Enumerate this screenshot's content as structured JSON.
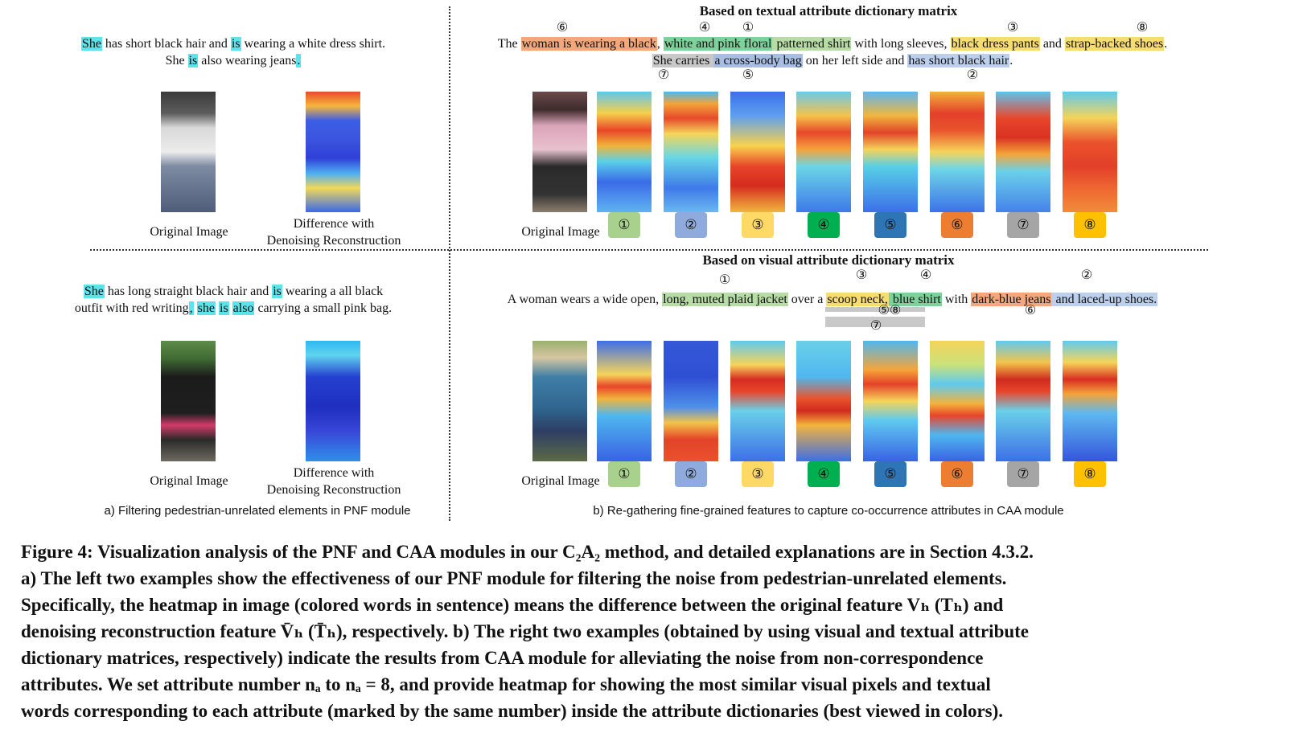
{
  "top_left": {
    "sentence": [
      [
        {
          "t": "She",
          "c": "cy"
        },
        {
          "t": " has short black hair and "
        },
        {
          "t": "is",
          "c": "cy"
        },
        {
          "t": " wearing a white dress shirt."
        }
      ],
      [
        {
          "t": "She "
        },
        {
          "t": "is",
          "c": "cy"
        },
        {
          "t": " also wearing jeans"
        },
        {
          "t": ".",
          "c": "cy"
        }
      ]
    ],
    "original_label": "Original Image",
    "diff_label_1": "Difference with",
    "diff_label_2": "Denoising Reconstruction"
  },
  "bottom_left": {
    "sentence": [
      [
        {
          "t": "She",
          "c": "cy"
        },
        {
          "t": " has long straight black hair and "
        },
        {
          "t": "is",
          "c": "cy"
        },
        {
          "t": " wearing a all black"
        }
      ],
      [
        {
          "t": "outfit with red writing"
        },
        {
          "t": ",",
          "c": "cy"
        },
        {
          "t": " "
        },
        {
          "t": "she",
          "c": "cy"
        },
        {
          "t": " "
        },
        {
          "t": "is",
          "c": "cy"
        },
        {
          "t": " "
        },
        {
          "t": "also",
          "c": "cy"
        },
        {
          "t": " carrying a small pink bag."
        }
      ]
    ],
    "original_label": "Original Image",
    "diff_label_1": "Difference with",
    "diff_label_2": "Denoising Reconstruction"
  },
  "top_right": {
    "header": "Based on textual attribute dictionary matrix",
    "sentence": [
      [
        {
          "t": "The "
        },
        {
          "t": "woman is wearing a black",
          "c": "or"
        },
        {
          "t": ", "
        },
        {
          "t": "white and pink floral",
          "c": "gr"
        },
        {
          "t": " patterned shirt",
          "c": "sg"
        },
        {
          "t": " with long sleeves, "
        },
        {
          "t": "black dress pants",
          "c": "ye"
        },
        {
          "t": " and "
        },
        {
          "t": "strap-backed shoes",
          "c": "ye"
        },
        {
          "t": "."
        }
      ],
      [
        {
          "t": "She carries ",
          "c": "gy"
        },
        {
          "t": "a cross-body bag",
          "c": "bl"
        },
        {
          "t": " on her left side and "
        },
        {
          "t": "has short black hair",
          "c": "lb"
        },
        {
          "t": "."
        }
      ]
    ],
    "marks": [
      "⑥",
      "④",
      "①",
      "③",
      "⑧",
      "⑦",
      "⑤",
      "②"
    ],
    "original_label": "Original Image"
  },
  "bottom_right": {
    "header": "Based on visual attribute dictionary matrix",
    "sentence": [
      [
        {
          "t": "A woman wears a wide open, "
        },
        {
          "t": "long, muted plaid jacket",
          "c": "sg"
        },
        {
          "t": " over a "
        },
        {
          "t": "scoop neck,",
          "c": "ye"
        },
        {
          "t": " blue shirt",
          "c": "gr"
        },
        {
          "t": " with "
        },
        {
          "t": "dark-blue jeans",
          "c": "or"
        },
        {
          "t": " and laced-up shoes.",
          "c": "lb"
        }
      ]
    ],
    "marks": [
      "①",
      "③",
      "④",
      "②",
      "⑤⑧",
      "⑥",
      "⑦"
    ],
    "original_label": "Original Image"
  },
  "badges": [
    {
      "label": "①",
      "color": "#a9d18e"
    },
    {
      "label": "②",
      "color": "#8faadc"
    },
    {
      "label": "③",
      "color": "#ffd966"
    },
    {
      "label": "④",
      "color": "#00b050"
    },
    {
      "label": "⑤",
      "color": "#2e75b6"
    },
    {
      "label": "⑥",
      "color": "#ed7d31"
    },
    {
      "label": "⑦",
      "color": "#a5a5a5"
    },
    {
      "label": "⑧",
      "color": "#ffc000"
    }
  ],
  "subcaption_a": "a) Filtering pedestrian-unrelated elements in PNF module",
  "subcaption_b": "b) Re-gathering fine-grained features to capture co-occurrence attributes in CAA module",
  "figure_caption": [
    "Figure 4: Visualization analysis of the PNF and CAA modules in our C₂A₂ method, and detailed explanations are in Section 4.3.2.",
    "a) The left two examples show the effectiveness of our PNF module for filtering the noise from pedestrian-unrelated elements.",
    "Specifically, the heatmap in image (colored words in sentence) means the difference between the original feature Vₕ (Tₕ) and",
    "denoising reconstruction feature V̄ₕ (T̄ₕ), respectively. b) The right two examples (obtained by using visual and textual attribute",
    "dictionary matrices, respectively) indicate the results from CAA module for alleviating the noise from non-correspondence",
    "attributes. We set attribute number nₐ to nₐ = 8, and provide heatmap for showing the most similar visual pixels and textual",
    "words corresponding to each attribute (marked by the same number) inside the attribute dictionaries (best viewed in colors)."
  ]
}
